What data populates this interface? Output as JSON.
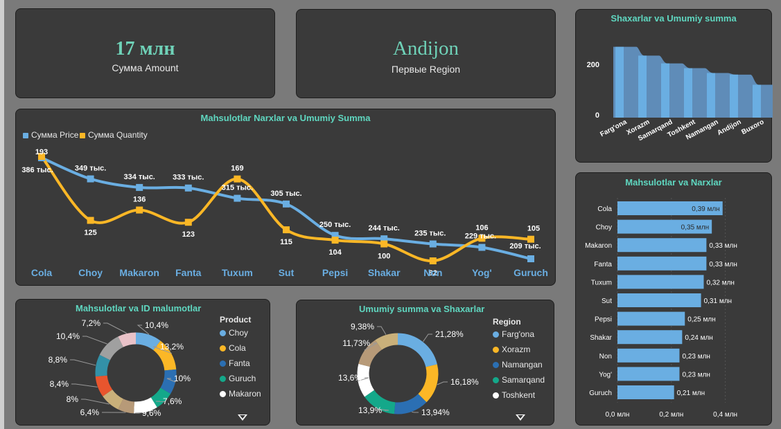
{
  "kpi_amount": {
    "value": "17 млн",
    "label": "Сумма Amount"
  },
  "kpi_region": {
    "value": "Andijon",
    "label": "Первые Region"
  },
  "colors": {
    "blue": "#6aaee2",
    "orange": "#fbb726",
    "title": "#5fd7c0",
    "panel": "#3a3a3a"
  },
  "chart_data": [
    {
      "type": "line",
      "title": "Mahsulotlar Narxlar va Umumiy Summa",
      "categories": [
        "Cola",
        "Choy",
        "Makaron",
        "Fanta",
        "Tuxum",
        "Sut",
        "Pepsi",
        "Shakar",
        "Non",
        "Yog'",
        "Guruch"
      ],
      "series": [
        {
          "name": "Сумма Price",
          "values": [
            386000,
            349000,
            334000,
            333000,
            315000,
            305000,
            250000,
            244000,
            235000,
            229000,
            209000
          ],
          "labels": [
            "386 тыс.",
            "349 тыс.",
            "334 тыс.",
            "333 тыс.",
            "315 тыс.",
            "305 тыс.",
            "250 тыс.",
            "244 тыс.",
            "235 тыс.",
            "229 тыс.",
            "209 тыс."
          ]
        },
        {
          "name": "Сумма Quantity",
          "values": [
            193,
            125,
            136,
            123,
            169,
            115,
            104,
            100,
            82,
            106,
            105
          ],
          "labels": [
            "193",
            "125",
            "136",
            "123",
            "169",
            "115",
            "104",
            "100",
            "82",
            "106",
            "105"
          ]
        }
      ],
      "legend": "top-left"
    },
    {
      "type": "area",
      "title": "Shaxarlar va Umumiy summa",
      "categories": [
        "Farg'ona",
        "Xorazm",
        "Samarqand",
        "Toshkent",
        "Namangan",
        "Andijon",
        "Buxoro"
      ],
      "values": [
        265,
        232,
        203,
        185,
        167,
        161,
        123
      ],
      "y_ticks": [
        "0",
        "200"
      ],
      "ylim": [
        0,
        290
      ]
    },
    {
      "type": "bar",
      "orientation": "horizontal",
      "title": "Mahsulotlar va Narxlar",
      "categories": [
        "Cola",
        "Choy",
        "Makaron",
        "Fanta",
        "Tuxum",
        "Sut",
        "Pepsi",
        "Shakar",
        "Non",
        "Yog'",
        "Guruch"
      ],
      "values": [
        0.39,
        0.35,
        0.33,
        0.33,
        0.32,
        0.31,
        0.25,
        0.24,
        0.23,
        0.23,
        0.21
      ],
      "labels": [
        "0,39 млн",
        "0,35 млн",
        "0,33 млн",
        "0,33 млн",
        "0,32 млн",
        "0,31 млн",
        "0,25 млн",
        "0,24 млн",
        "0,23 млн",
        "0,23 млн",
        "0,21 млн"
      ],
      "x_ticks": [
        "0,0 млн",
        "0,2 млн",
        "0,4 млн"
      ],
      "xlim": [
        0,
        0.42
      ]
    },
    {
      "type": "pie",
      "title": "Mahsulotlar va ID malumotlar",
      "legend_title": "Product",
      "values": [
        10.4,
        13.2,
        10,
        7.6,
        9.6,
        6.4,
        8,
        8.4,
        8.8,
        10.4,
        7.2
      ],
      "labels": [
        "10,4%",
        "13,2%",
        "10%",
        "7,6%",
        "9,6%",
        "6,4%",
        "8%",
        "8,4%",
        "8,8%",
        "10,4%",
        "7,2%"
      ],
      "colors": [
        "#6aaee2",
        "#fbb726",
        "#2b6fb3",
        "#14a88a",
        "#ffffff",
        "#b79a78",
        "#c9b07a",
        "#e8552e",
        "#3391a8",
        "#a0a0a0",
        "#e9c2c8"
      ],
      "legend": [
        {
          "name": "Choy",
          "color": "#6aaee2"
        },
        {
          "name": "Cola",
          "color": "#fbb726"
        },
        {
          "name": "Fanta",
          "color": "#2b6fb3"
        },
        {
          "name": "Guruch",
          "color": "#14a88a"
        },
        {
          "name": "Makaron",
          "color": "#ffffff"
        }
      ]
    },
    {
      "type": "pie",
      "title": "Umumiy summa va Shaxarlar",
      "legend_title": "Region",
      "values": [
        21.28,
        16.18,
        13.94,
        13.9,
        13.6,
        11.73,
        9.38
      ],
      "labels": [
        "21,28%",
        "16,18%",
        "13,94%",
        "13,9%",
        "13,6%",
        "11,73%",
        "9,38%"
      ],
      "colors": [
        "#6aaee2",
        "#fbb726",
        "#2b6fb3",
        "#14a88a",
        "#ffffff",
        "#b79a78",
        "#c9b07a"
      ],
      "legend": [
        {
          "name": "Farg'ona",
          "color": "#6aaee2"
        },
        {
          "name": "Xorazm",
          "color": "#fbb726"
        },
        {
          "name": "Namangan",
          "color": "#2b6fb3"
        },
        {
          "name": "Samarqand",
          "color": "#14a88a"
        },
        {
          "name": "Toshkent",
          "color": "#ffffff"
        }
      ]
    }
  ]
}
